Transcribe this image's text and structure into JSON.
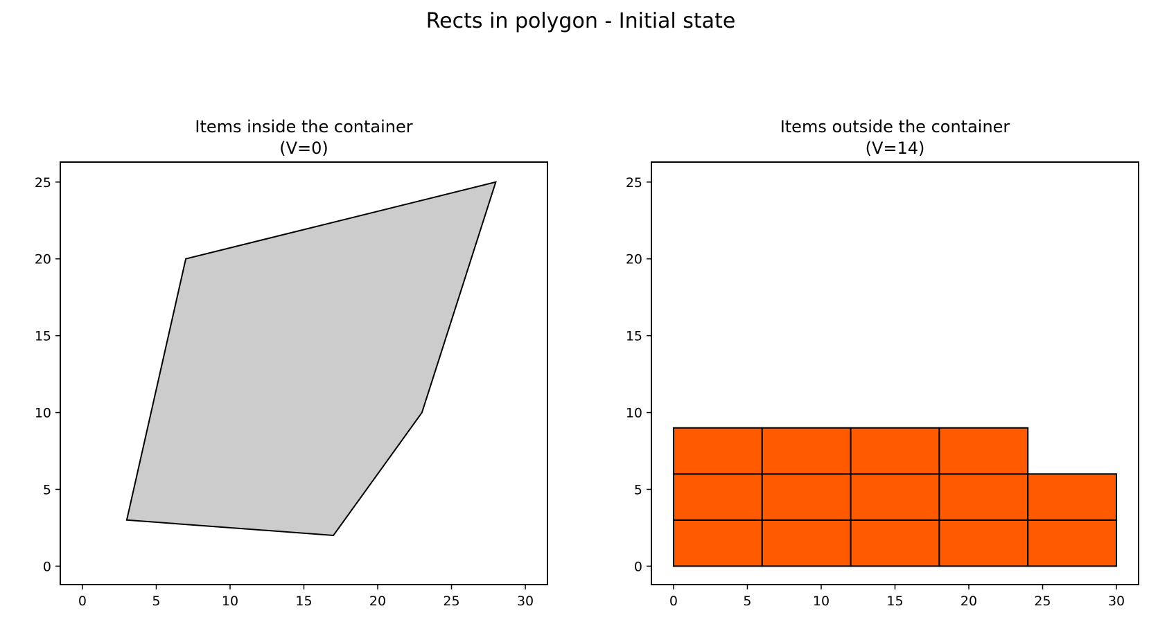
{
  "figure": {
    "title": "Rects in polygon - Initial state"
  },
  "chart_data": [
    {
      "type": "polygon",
      "title": "Items inside the container\n(V=0)",
      "title_lines": [
        "Items inside the container",
        "(V=0)"
      ],
      "xlabel": "",
      "ylabel": "",
      "xlim": [
        -1.5,
        31.5
      ],
      "ylim": [
        -1.2,
        26.3
      ],
      "xticks": [
        0,
        5,
        10,
        15,
        20,
        25,
        30
      ],
      "yticks": [
        0,
        5,
        10,
        15,
        20,
        25
      ],
      "grid": false,
      "polygon": {
        "points": [
          [
            3,
            3
          ],
          [
            17,
            2
          ],
          [
            23,
            10
          ],
          [
            28,
            25
          ],
          [
            7,
            20
          ]
        ],
        "fill": "#cccccc",
        "stroke": "#000000"
      },
      "rects": []
    },
    {
      "type": "rectangles",
      "title": "Items outside the container\n(V=14)",
      "title_lines": [
        "Items outside the container",
        "(V=14)"
      ],
      "xlabel": "",
      "ylabel": "",
      "xlim": [
        -1.5,
        31.5
      ],
      "ylim": [
        -1.2,
        26.3
      ],
      "xticks": [
        0,
        5,
        10,
        15,
        20,
        25,
        30
      ],
      "yticks": [
        0,
        5,
        10,
        15,
        20,
        25
      ],
      "grid": false,
      "rect_fill": "#ff5a00",
      "rect_stroke": "#000000",
      "rects": [
        {
          "x": 0,
          "y": 0,
          "w": 6,
          "h": 3
        },
        {
          "x": 6,
          "y": 0,
          "w": 6,
          "h": 3
        },
        {
          "x": 12,
          "y": 0,
          "w": 6,
          "h": 3
        },
        {
          "x": 18,
          "y": 0,
          "w": 6,
          "h": 3
        },
        {
          "x": 24,
          "y": 0,
          "w": 6,
          "h": 3
        },
        {
          "x": 0,
          "y": 3,
          "w": 6,
          "h": 3
        },
        {
          "x": 6,
          "y": 3,
          "w": 6,
          "h": 3
        },
        {
          "x": 12,
          "y": 3,
          "w": 6,
          "h": 3
        },
        {
          "x": 18,
          "y": 3,
          "w": 6,
          "h": 3
        },
        {
          "x": 24,
          "y": 3,
          "w": 6,
          "h": 3
        },
        {
          "x": 0,
          "y": 6,
          "w": 6,
          "h": 3
        },
        {
          "x": 6,
          "y": 6,
          "w": 6,
          "h": 3
        },
        {
          "x": 12,
          "y": 6,
          "w": 6,
          "h": 3
        },
        {
          "x": 18,
          "y": 6,
          "w": 6,
          "h": 3
        }
      ]
    }
  ]
}
